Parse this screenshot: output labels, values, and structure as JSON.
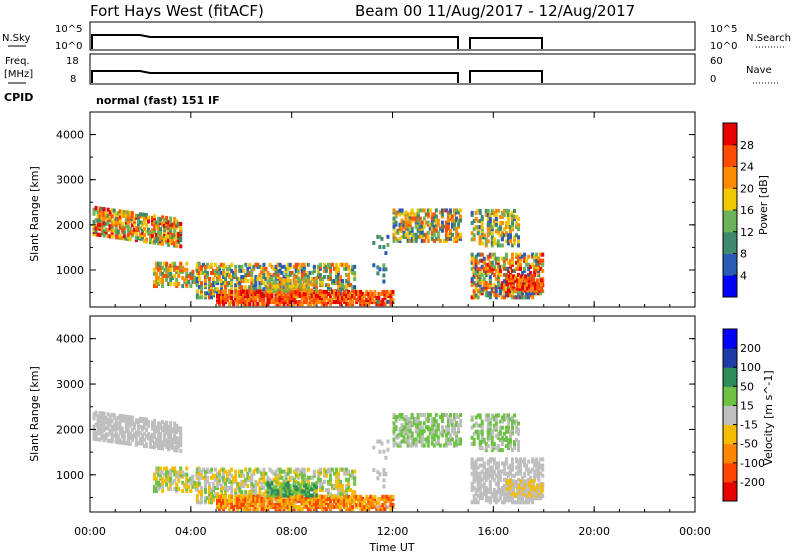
{
  "header": {
    "station": "Fort Hays West (fitACF)",
    "beam_info": "Beam 00  11/Aug/2017 - 12/Aug/2017"
  },
  "noise_panel": {
    "left_label": "N.Sky",
    "right_label": "N.Search",
    "left_ticks": [
      "10^5",
      "10^0"
    ],
    "right_ticks": [
      "10^5",
      "10^0"
    ]
  },
  "freq_panel": {
    "left_label_line1": "Freq.",
    "left_label_line2": "[MHz]",
    "right_label": "Nave",
    "left_ticks": [
      "18",
      "8"
    ],
    "right_ticks": [
      "60",
      "0"
    ]
  },
  "cpid": {
    "label": "CPID",
    "value": "normal (fast) 151 IF"
  },
  "colors": {
    "power_scale": [
      "#0000ff",
      "#2a5ab4",
      "#3f8a6e",
      "#6bb25a",
      "#f0c800",
      "#ff8c00",
      "#ff4c00",
      "#e60000"
    ],
    "velocity_scale": [
      "#e60000",
      "#ff4400",
      "#ff8800",
      "#f4bd00",
      "#bebebe",
      "#6dc244",
      "#2e8b57",
      "#1e3ca8",
      "#0000ff"
    ]
  },
  "chart_data": [
    {
      "type": "heatmap",
      "name": "power",
      "ylabel": "Slant Range [km]",
      "yticks": [
        "1000",
        "2000",
        "3000",
        "4000"
      ],
      "ylim": [
        180,
        4500
      ],
      "colorbar_label": "Power [dB]",
      "colorbar_ticks": [
        "4",
        "8",
        "12",
        "16",
        "20",
        "24",
        "28"
      ],
      "colorbar_range": [
        0,
        32
      ]
    },
    {
      "type": "heatmap",
      "name": "velocity",
      "ylabel": "Slant Range [km]",
      "yticks": [
        "1000",
        "2000",
        "3000",
        "4000"
      ],
      "ylim": [
        180,
        4500
      ],
      "colorbar_label": "Velocity [m s^-1]",
      "colorbar_ticks": [
        "-200",
        "-100",
        "-50",
        "-15",
        "15",
        "50",
        "100",
        "200"
      ]
    }
  ],
  "xaxis": {
    "label": "Time UT",
    "ticks": [
      "00:00",
      "04:00",
      "08:00",
      "12:00",
      "16:00",
      "20:00",
      "00:00"
    ],
    "range_hours": [
      0,
      24
    ]
  }
}
